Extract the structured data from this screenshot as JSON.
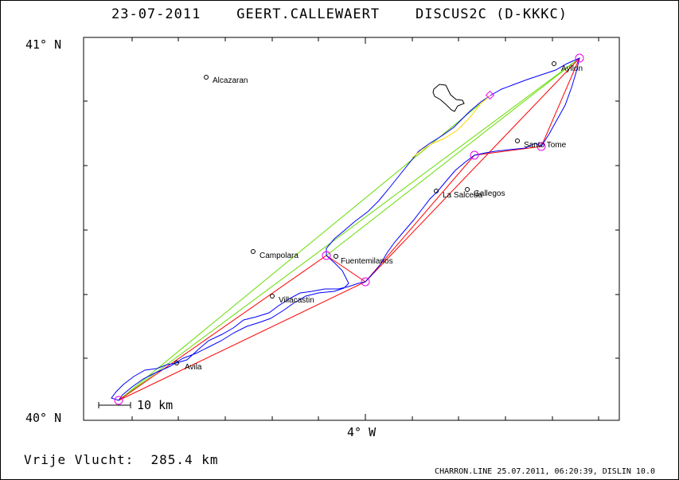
{
  "header": {
    "date": "23-07-2011",
    "pilot": "GEERT.CALLEWAERT",
    "glider": "DISCUS2C (D-KKKC)"
  },
  "axes": {
    "lat_top": "41° N",
    "lat_bottom": "40° N",
    "lon_center": "4° W"
  },
  "scale_label": "10 km",
  "towns": [
    {
      "name": "Alcazaran"
    },
    {
      "name": "Ayllon"
    },
    {
      "name": "Santo Tome"
    },
    {
      "name": "La Salceda"
    },
    {
      "name": "Gallegos"
    },
    {
      "name": "Campolara"
    },
    {
      "name": "Fuentemilanos"
    },
    {
      "name": "Villacastin"
    },
    {
      "name": "Avila"
    }
  ],
  "colors": {
    "track": "#0000ff",
    "track_final": "#ffd700",
    "task_red": "#ff0000",
    "task_green": "#66dd00",
    "turnpoint": "#ee00ee",
    "region": "#000000"
  },
  "footer": {
    "label": "Vrije Vlucht:",
    "distance": "285.4 km"
  },
  "credit": "CHARRON.LINE 25.07.2011, 06:20:39, DISLIN 10.0"
}
